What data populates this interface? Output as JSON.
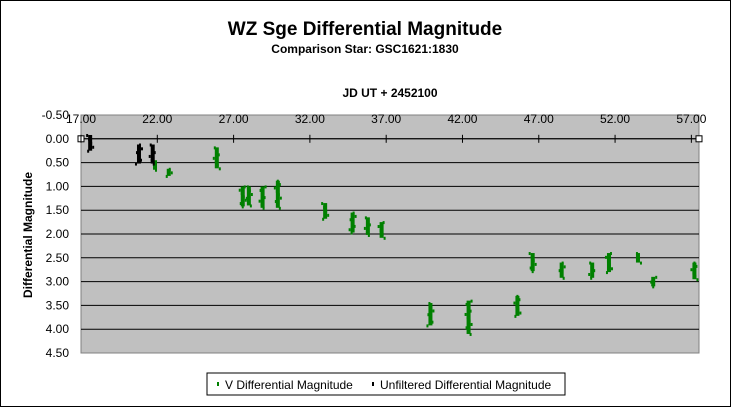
{
  "chart_data": {
    "type": "scatter",
    "title": "WZ Sge Differential  Magnitude",
    "subtitle": "Comparison Star: GSC1621:1830",
    "xlabel": "JD UT + 2452100",
    "ylabel": "Differential Magnitude",
    "xlim": [
      17.0,
      57.5
    ],
    "ylim": [
      -0.5,
      4.5
    ],
    "y_inverted": true,
    "x_ticks": [
      "17.00",
      "22.00",
      "27.00",
      "32.00",
      "37.00",
      "42.00",
      "47.00",
      "52.00",
      "57.00"
    ],
    "y_ticks": [
      "-0.50",
      "0.00",
      "0.50",
      "1.00",
      "1.50",
      "2.00",
      "2.50",
      "3.00",
      "3.50",
      "4.00",
      "4.50"
    ],
    "grid": "horizontal",
    "legend_position": "bottom",
    "colors": {
      "plot_bg": "#c0c0c0",
      "v": "#008000",
      "unfiltered": "#000000"
    },
    "series": [
      {
        "name": "V Differential Magnitude",
        "color": "#008000",
        "clusters": [
          [
            21.85,
            0.45,
            0.65
          ],
          [
            22.75,
            0.63,
            0.78
          ],
          [
            25.9,
            0.18,
            0.62
          ],
          [
            27.6,
            1.0,
            1.42
          ],
          [
            28.0,
            1.0,
            1.4
          ],
          [
            28.9,
            1.0,
            1.45
          ],
          [
            29.9,
            0.88,
            1.45
          ],
          [
            33.0,
            1.35,
            1.68
          ],
          [
            34.8,
            1.55,
            1.97
          ],
          [
            35.8,
            1.65,
            2.02
          ],
          [
            36.7,
            1.75,
            2.08
          ],
          [
            39.9,
            3.45,
            3.92
          ],
          [
            42.4,
            3.4,
            4.1
          ],
          [
            45.6,
            3.3,
            3.72
          ],
          [
            46.6,
            2.4,
            2.78
          ],
          [
            48.5,
            2.6,
            2.92
          ],
          [
            50.5,
            2.6,
            2.92
          ],
          [
            51.6,
            2.4,
            2.8
          ],
          [
            53.5,
            2.4,
            2.6
          ],
          [
            54.5,
            2.9,
            3.1
          ],
          [
            57.2,
            2.6,
            2.95
          ]
        ]
      },
      {
        "name": "Unfiltered Differential Magnitude",
        "color": "#000000",
        "clusters": [
          [
            17.6,
            -0.08,
            0.25
          ],
          [
            20.8,
            0.12,
            0.52
          ],
          [
            21.7,
            0.12,
            0.52
          ]
        ]
      }
    ]
  }
}
